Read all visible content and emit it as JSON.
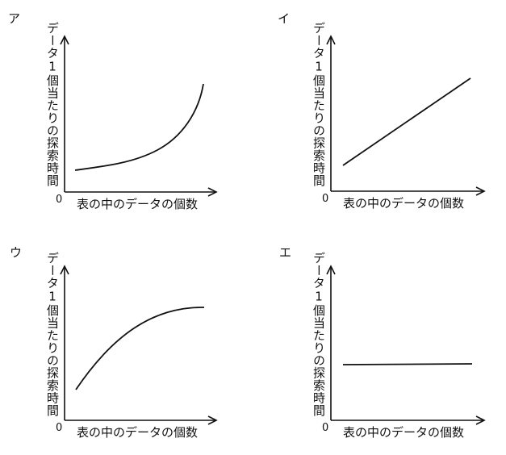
{
  "panels": [
    {
      "label": "ア",
      "y_axis_label": "データ1個当たりの探索時間",
      "x_axis_label": "表の中のデータの個数",
      "origin": "0"
    },
    {
      "label": "イ",
      "y_axis_label": "データ1個当たりの探索時間",
      "x_axis_label": "表の中のデータの個数",
      "origin": "0"
    },
    {
      "label": "ウ",
      "y_axis_label": "データ1個当たりの探索時間",
      "x_axis_label": "表の中のデータの個数",
      "origin": "0"
    },
    {
      "label": "エ",
      "y_axis_label": "データ1個当たりの探索時間",
      "x_axis_label": "表の中のデータの個数",
      "origin": "0"
    }
  ]
}
